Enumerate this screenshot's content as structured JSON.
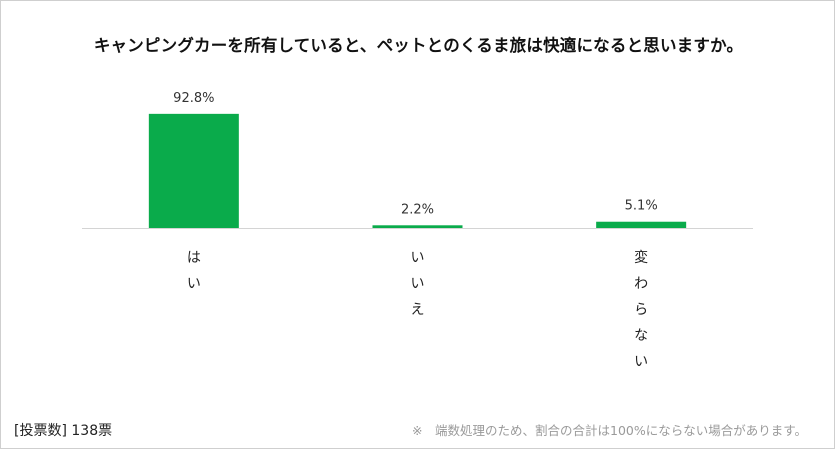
{
  "title": "キャンピングカーを所有していると、ペットとのくるま旅は快適になると思いますか。",
  "chart_data": {
    "type": "bar",
    "categories": [
      "はい",
      "いいえ",
      "変わらない"
    ],
    "values": [
      92.8,
      2.2,
      5.1
    ],
    "value_labels": [
      "92.8%",
      "2.2%",
      "5.1%"
    ],
    "ylim": [
      0,
      100
    ],
    "grid": false,
    "legend": "none",
    "bar_color": "#0aab4b",
    "category_label_orientation": "vertical"
  },
  "footer": {
    "votes": "[投票数] 138票",
    "note": "※　端数処理のため、割合の合計は100%にならない場合があります。"
  }
}
